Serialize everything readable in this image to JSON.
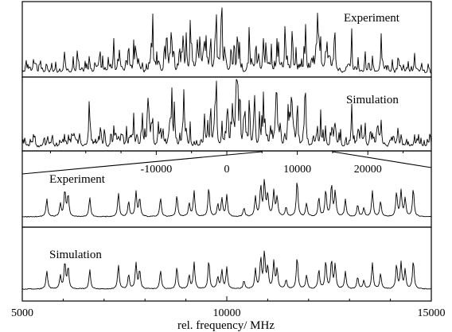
{
  "chart_data": [
    {
      "type": "line",
      "panel": "experiment-overview",
      "annotation": "Experiment",
      "xlim": [
        -29000,
        29000
      ],
      "peaks": [
        [
          -1500,
          1.0
        ],
        [
          -2300,
          0.75
        ],
        [
          -3200,
          0.52
        ],
        [
          -700,
          0.45
        ],
        [
          600,
          0.42
        ],
        [
          1800,
          0.38
        ],
        [
          3200,
          0.5
        ],
        [
          -5200,
          0.42
        ],
        [
          -7800,
          0.38
        ],
        [
          -10500,
          0.4
        ],
        [
          -13200,
          0.35
        ],
        [
          -16000,
          0.3
        ],
        [
          -19500,
          0.28
        ],
        [
          -23000,
          0.2
        ],
        [
          5200,
          0.4
        ],
        [
          7100,
          0.5
        ],
        [
          9300,
          0.55
        ],
        [
          11200,
          0.58
        ],
        [
          13300,
          0.52
        ],
        [
          15300,
          0.48
        ],
        [
          17700,
          0.62
        ],
        [
          19600,
          0.45
        ],
        [
          21900,
          0.38
        ],
        [
          24300,
          0.3
        ],
        [
          26600,
          0.25
        ]
      ]
    },
    {
      "type": "line",
      "panel": "simulation-overview",
      "annotation": "Simulation",
      "xlim": [
        -29000,
        29000
      ],
      "xticks": [
        -10000,
        0,
        10000,
        20000
      ],
      "peaks": [
        [
          -1500,
          1.0
        ],
        [
          -2300,
          0.72
        ],
        [
          -3200,
          0.5
        ],
        [
          -700,
          0.42
        ],
        [
          600,
          0.4
        ],
        [
          1800,
          0.36
        ],
        [
          3200,
          0.48
        ],
        [
          -5200,
          0.4
        ],
        [
          -7800,
          0.36
        ],
        [
          -10500,
          0.38
        ],
        [
          -13200,
          0.34
        ],
        [
          -16000,
          0.3
        ],
        [
          -19500,
          0.26
        ],
        [
          -23000,
          0.18
        ],
        [
          5200,
          0.38
        ],
        [
          7100,
          0.48
        ],
        [
          9300,
          0.52
        ],
        [
          11200,
          0.55
        ],
        [
          13300,
          0.5
        ],
        [
          15300,
          0.46
        ],
        [
          17700,
          0.6
        ],
        [
          19600,
          0.42
        ],
        [
          21900,
          0.36
        ],
        [
          24300,
          0.28
        ],
        [
          26600,
          0.22
        ]
      ]
    },
    {
      "type": "line",
      "panel": "experiment-detail",
      "annotation": "Experiment",
      "xlim": [
        5000,
        15000
      ],
      "peaks": [
        [
          5600,
          0.42
        ],
        [
          5930,
          0.3
        ],
        [
          6040,
          0.62
        ],
        [
          6120,
          0.5
        ],
        [
          6650,
          0.45
        ],
        [
          7350,
          0.55
        ],
        [
          7600,
          0.35
        ],
        [
          7780,
          0.58
        ],
        [
          7870,
          0.42
        ],
        [
          8380,
          0.44
        ],
        [
          8780,
          0.5
        ],
        [
          9080,
          0.32
        ],
        [
          9200,
          0.6
        ],
        [
          9560,
          0.68
        ],
        [
          9780,
          0.28
        ],
        [
          9880,
          0.42
        ],
        [
          10000,
          0.5
        ],
        [
          10420,
          0.2
        ],
        [
          10700,
          0.45
        ],
        [
          10830,
          0.7
        ],
        [
          10920,
          0.82
        ],
        [
          11000,
          0.5
        ],
        [
          11150,
          0.6
        ],
        [
          11230,
          0.45
        ],
        [
          11450,
          0.22
        ],
        [
          11720,
          0.86
        ],
        [
          11950,
          0.32
        ],
        [
          12250,
          0.45
        ],
        [
          12420,
          0.62
        ],
        [
          12560,
          0.75
        ],
        [
          12650,
          0.58
        ],
        [
          12900,
          0.4
        ],
        [
          13200,
          0.28
        ],
        [
          13350,
          0.2
        ],
        [
          13560,
          0.6
        ],
        [
          13760,
          0.36
        ],
        [
          14150,
          0.56
        ],
        [
          14260,
          0.6
        ],
        [
          14360,
          0.42
        ],
        [
          14560,
          0.66
        ]
      ]
    },
    {
      "type": "line",
      "panel": "simulation-detail",
      "annotation": "Simulation",
      "xlim": [
        5000,
        15000
      ],
      "xticks": [
        5000,
        10000,
        15000
      ],
      "xlabel": "rel. frequency/ MHz",
      "peaks": [
        [
          5600,
          0.4
        ],
        [
          5930,
          0.28
        ],
        [
          6040,
          0.58
        ],
        [
          6120,
          0.46
        ],
        [
          6650,
          0.42
        ],
        [
          7350,
          0.52
        ],
        [
          7600,
          0.32
        ],
        [
          7780,
          0.56
        ],
        [
          7870,
          0.4
        ],
        [
          8380,
          0.4
        ],
        [
          8780,
          0.48
        ],
        [
          9080,
          0.3
        ],
        [
          9200,
          0.58
        ],
        [
          9560,
          0.62
        ],
        [
          9780,
          0.26
        ],
        [
          9880,
          0.4
        ],
        [
          10000,
          0.46
        ],
        [
          10420,
          0.18
        ],
        [
          10700,
          0.42
        ],
        [
          10830,
          0.66
        ],
        [
          10920,
          0.78
        ],
        [
          11000,
          0.46
        ],
        [
          11150,
          0.58
        ],
        [
          11230,
          0.42
        ],
        [
          11450,
          0.2
        ],
        [
          11720,
          0.7
        ],
        [
          11950,
          0.3
        ],
        [
          12250,
          0.42
        ],
        [
          12420,
          0.6
        ],
        [
          12560,
          0.62
        ],
        [
          12650,
          0.52
        ],
        [
          12900,
          0.38
        ],
        [
          13200,
          0.26
        ],
        [
          13350,
          0.18
        ],
        [
          13560,
          0.56
        ],
        [
          13760,
          0.34
        ],
        [
          14150,
          0.52
        ],
        [
          14260,
          0.56
        ],
        [
          14360,
          0.4
        ],
        [
          14560,
          0.62
        ]
      ]
    }
  ]
}
